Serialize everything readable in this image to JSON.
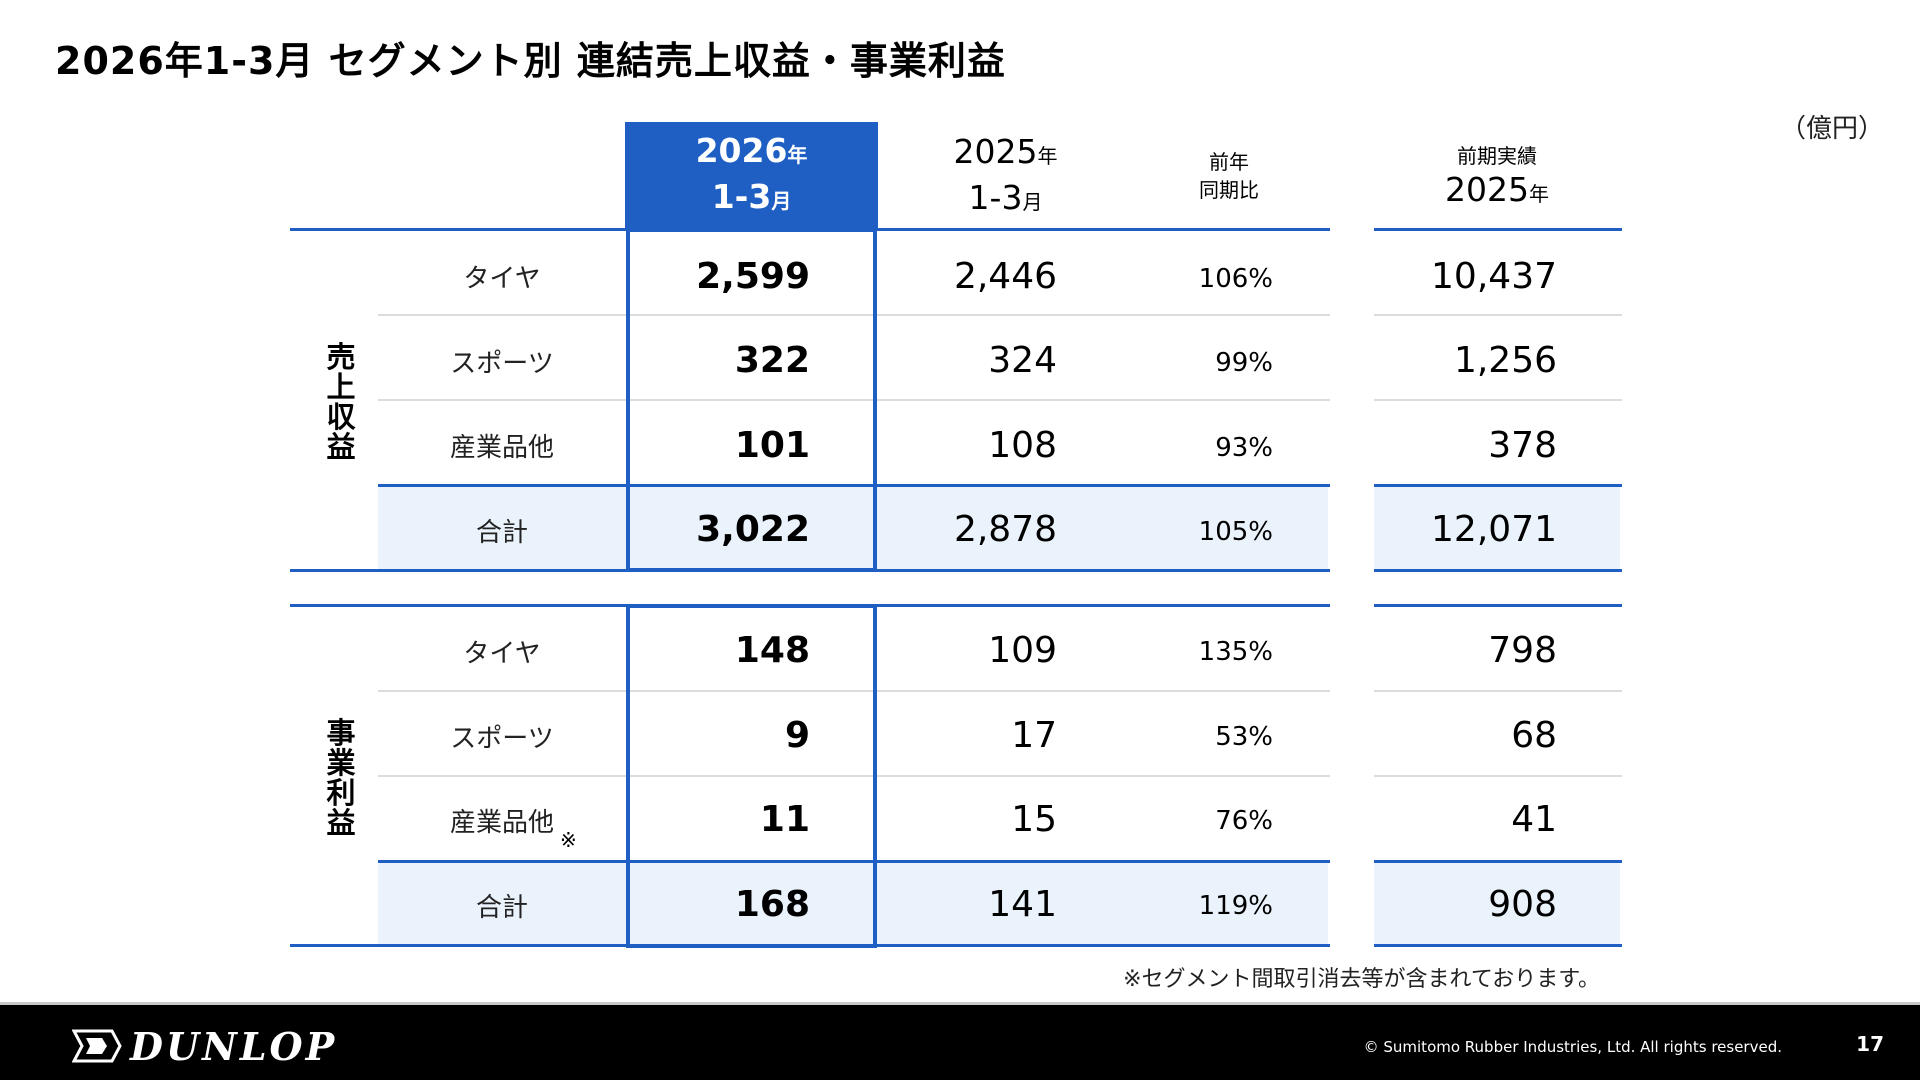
{
  "title": "2026年1-3月 セグメント別 連結売上収益・事業利益",
  "unit": "（億円）",
  "header": {
    "current_year": "2026",
    "current_year_suffix": "年",
    "current_period": "1-3",
    "current_period_suffix": "月",
    "prev_year": "2025",
    "prev_year_suffix": "年",
    "prev_period": "1-3",
    "prev_period_suffix": "月",
    "ratio_line1": "前年",
    "ratio_line2": "同期比",
    "fy_line1": "前期実績",
    "fy_year": "2025",
    "fy_year_suffix": "年"
  },
  "revenue": {
    "group_label": [
      "売",
      "上",
      "収",
      "益"
    ],
    "rows": [
      {
        "label": "タイヤ",
        "current": "2,599",
        "prev": "2,446",
        "ratio": "106%",
        "fy": "10,437"
      },
      {
        "label": "スポーツ",
        "current": "322",
        "prev": "324",
        "ratio": "99%",
        "fy": "1,256"
      },
      {
        "label": "産業品他",
        "current": "101",
        "prev": "108",
        "ratio": "93%",
        "fy": "378"
      },
      {
        "label": "合計",
        "current": "3,022",
        "prev": "2,878",
        "ratio": "105%",
        "fy": "12,071"
      }
    ]
  },
  "profit": {
    "group_label": [
      "事",
      "業",
      "利",
      "益"
    ],
    "rows": [
      {
        "label": "タイヤ",
        "current": "148",
        "prev": "109",
        "ratio": "135%",
        "fy": "798"
      },
      {
        "label": "スポーツ",
        "current": "9",
        "prev": "17",
        "ratio": "53%",
        "fy": "68"
      },
      {
        "label": "産業品他",
        "note": "※",
        "current": "11",
        "prev": "15",
        "ratio": "76%",
        "fy": "41"
      },
      {
        "label": "合計",
        "current": "168",
        "prev": "141",
        "ratio": "119%",
        "fy": "908"
      }
    ]
  },
  "footnote": "※セグメント間取引消去等が含まれております。",
  "footer": {
    "logo_text": "DUNLOP",
    "copyright": "© Sumitomo Rubber Industries, Ltd. All rights reserved.",
    "page_number": "17"
  },
  "colors": {
    "accent": "#1f5fc4",
    "shade": "#eaf2fb",
    "footer": "#000000"
  }
}
